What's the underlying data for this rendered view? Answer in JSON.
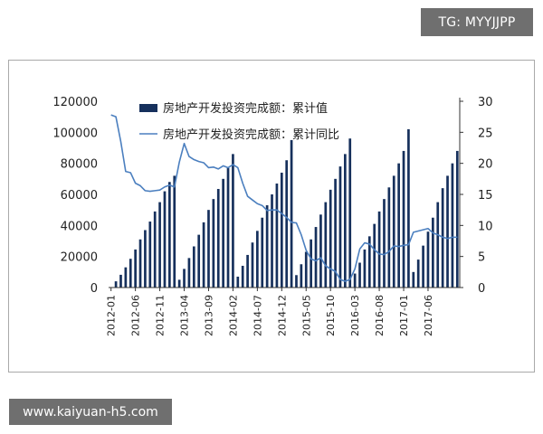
{
  "watermark_top": "TG: MYYJJPP",
  "watermark_bottom": "www.kaiyuan-h5.com",
  "chart_data": {
    "type": "bar",
    "title": "",
    "xlabel": "",
    "ylabel": "",
    "ylim": [
      0,
      120000
    ],
    "y2lim": [
      0,
      30
    ],
    "yticks": [
      "0",
      "20000",
      "40000",
      "60000",
      "80000",
      "100000",
      "120000"
    ],
    "y2ticks": [
      "0",
      "5",
      "10",
      "15",
      "20",
      "25",
      "30"
    ],
    "xticks": [
      "2012-01",
      "2012-06",
      "2012-11",
      "2013-04",
      "2013-09",
      "2014-02",
      "2014-07",
      "2014-12",
      "2015-05",
      "2015-10",
      "2016-03",
      "2016-08",
      "2017-01",
      "2017-06"
    ],
    "colors": {
      "bars": "#16305c",
      "line": "#4b7fbf"
    },
    "legend_position": "top",
    "series": [
      {
        "name": "房地产开发投资完成额：累计值",
        "type": "bar",
        "axis": "left",
        "values": [
          0,
          4000,
          8200,
          13000,
          18500,
          24500,
          31000,
          37000,
          42500,
          49000,
          55000,
          62000,
          68000,
          72000,
          5000,
          12000,
          19000,
          26500,
          34000,
          42000,
          50000,
          57000,
          63500,
          70000,
          77000,
          86000,
          7000,
          14000,
          21000,
          29000,
          36500,
          45000,
          53000,
          60000,
          67000,
          74000,
          82000,
          95000,
          8000,
          15000,
          23000,
          31000,
          39000,
          47000,
          55000,
          63000,
          70000,
          78000,
          86000,
          96000,
          9000,
          16000,
          24500,
          33000,
          41000,
          49000,
          57000,
          64500,
          72000,
          80000,
          88000,
          102000,
          10000,
          18000,
          27000,
          36000,
          45000,
          55000,
          64000,
          72000,
          80000,
          88000
        ]
      },
      {
        "name": "房地产开发投资完成额：累计同比",
        "type": "line",
        "axis": "right",
        "values": [
          27.8,
          27.5,
          23.5,
          18.7,
          18.5,
          16.8,
          16.4,
          15.6,
          15.5,
          15.6,
          15.7,
          16.2,
          16.5,
          16.2,
          20.2,
          23.2,
          21.1,
          20.6,
          20.3,
          20.1,
          19.3,
          19.4,
          19.1,
          19.6,
          19.3,
          19.8,
          19.3,
          16.8,
          14.7,
          14.1,
          13.5,
          13.2,
          12.4,
          12.5,
          12.5,
          11.9,
          11.3,
          10.5,
          10.4,
          8.5,
          6.0,
          4.6,
          4.3,
          4.8,
          3.5,
          3.0,
          2.6,
          1.3,
          1.0,
          1.3,
          3.0,
          6.2,
          7.2,
          7.0,
          6.1,
          5.4,
          5.3,
          5.8,
          6.7,
          6.6,
          6.8,
          6.9,
          8.9,
          9.1,
          9.3,
          9.5,
          8.8,
          8.5,
          8.1,
          7.9,
          8.1,
          8.1
        ]
      }
    ]
  }
}
